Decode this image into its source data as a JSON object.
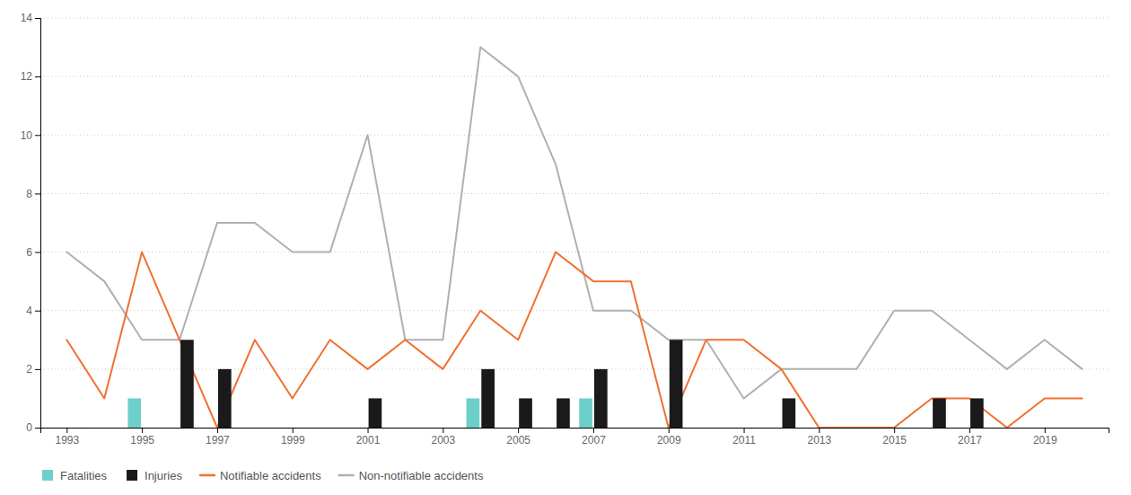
{
  "chart_data": {
    "type": "bar",
    "x": [
      1993,
      1994,
      1995,
      1996,
      1997,
      1998,
      1999,
      2000,
      2001,
      2002,
      2003,
      2004,
      2005,
      2006,
      2007,
      2008,
      2009,
      2010,
      2011,
      2012,
      2013,
      2014,
      2015,
      2016,
      2017,
      2018,
      2019,
      2020
    ],
    "series": [
      {
        "name": "Fatalities",
        "type": "bar",
        "color": "#6dcfca",
        "values": [
          null,
          null,
          1,
          null,
          null,
          null,
          null,
          null,
          null,
          null,
          null,
          1,
          null,
          null,
          1,
          null,
          null,
          null,
          null,
          null,
          null,
          null,
          null,
          null,
          null,
          null,
          null,
          null
        ]
      },
      {
        "name": "Injuries",
        "type": "bar",
        "color": "#1a1a1a",
        "values": [
          null,
          null,
          null,
          3,
          2,
          null,
          null,
          null,
          1,
          null,
          null,
          2,
          1,
          1,
          2,
          null,
          3,
          null,
          null,
          1,
          null,
          null,
          null,
          1,
          1,
          null,
          null,
          null
        ]
      },
      {
        "name": "Notifiable accidents",
        "type": "line",
        "color": "#f07030",
        "values": [
          3,
          1,
          6,
          3,
          0,
          3,
          1,
          3,
          2,
          3,
          2,
          4,
          3,
          6,
          5,
          5,
          0,
          3,
          3,
          2,
          0,
          0,
          0,
          1,
          1,
          0,
          1,
          1
        ]
      },
      {
        "name": "Non-notifiable accidents",
        "type": "line",
        "color": "#b0b0b0",
        "values": [
          6,
          5,
          3,
          3,
          7,
          7,
          6,
          6,
          10,
          3,
          3,
          13,
          12,
          9,
          4,
          4,
          3,
          3,
          1,
          2,
          2,
          2,
          4,
          4,
          3,
          2,
          3,
          2
        ]
      }
    ],
    "xlim": [
      1992.3,
      2020.7
    ],
    "xticks": [
      1993,
      1995,
      1997,
      1999,
      2001,
      2003,
      2005,
      2007,
      2009,
      2011,
      2013,
      2015,
      2017,
      2019
    ],
    "ylim": [
      0,
      14
    ],
    "yticks": [
      0,
      2,
      4,
      6,
      8,
      10,
      12,
      14
    ],
    "grid": true,
    "legend": "lower left"
  }
}
